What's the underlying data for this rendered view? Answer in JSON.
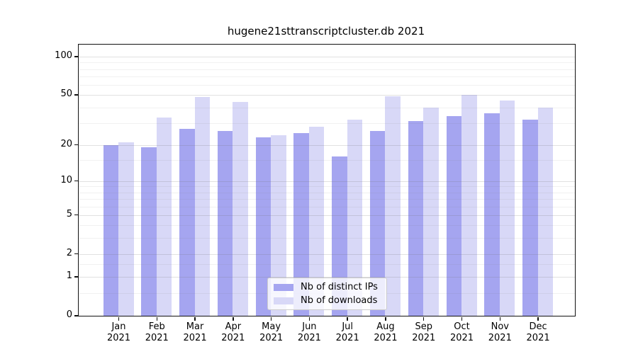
{
  "chart_data": {
    "type": "bar",
    "title": "hugene21sttranscriptcluster.db 2021",
    "categories": [
      "Jan",
      "Feb",
      "Mar",
      "Apr",
      "May",
      "Jun",
      "Jul",
      "Aug",
      "Sep",
      "Oct",
      "Nov",
      "Dec"
    ],
    "category_year": "2021",
    "series": [
      {
        "name": "Nb of distinct IPs",
        "color": "#a5a5f0",
        "values": [
          20,
          19,
          27,
          26,
          23,
          25,
          16,
          26,
          31,
          34,
          36,
          32
        ]
      },
      {
        "name": "Nb of downloads",
        "color": "#d8d8f7",
        "values": [
          21,
          33,
          48,
          44,
          24,
          28,
          32,
          49,
          40,
          50,
          45,
          40
        ]
      }
    ],
    "xlabel": "",
    "ylabel": "",
    "yscale": "log10(1+y)",
    "ylim": [
      0,
      124
    ],
    "yticks": [
      0,
      1,
      2,
      5,
      10,
      20,
      50,
      100
    ],
    "minor_gridlines": [
      0.5,
      1.5,
      3,
      4,
      6,
      7,
      8,
      9,
      15,
      30,
      40,
      60,
      70,
      80,
      90
    ],
    "grid": true,
    "legend_position": "bottom-center"
  },
  "colors": {
    "axis": "#111111",
    "background": "#ffffff",
    "grid_major": "#dddddd",
    "grid_minor": "#efefef"
  }
}
